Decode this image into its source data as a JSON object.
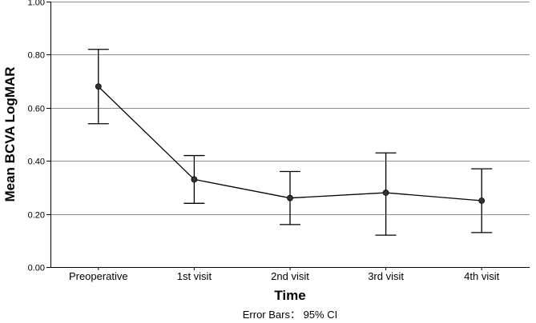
{
  "chart_data": {
    "type": "line",
    "title": "",
    "xlabel": "Time",
    "ylabel": "Mean BCVA LogMAR",
    "ylim": [
      0,
      1
    ],
    "yticks": [
      "0.00",
      "0.20",
      "0.40",
      "0.60",
      "0.80",
      "1.00"
    ],
    "grid": true,
    "categories": [
      "Preoperative",
      "1st visit",
      "2nd visit",
      "3rd visit",
      "4th visit"
    ],
    "series": [
      {
        "values": [
          0.68,
          0.33,
          0.26,
          0.28,
          0.25
        ],
        "ci_low": [
          0.54,
          0.24,
          0.16,
          0.12,
          0.13
        ],
        "ci_high": [
          0.82,
          0.42,
          0.36,
          0.43,
          0.37
        ]
      }
    ],
    "footnote": "Error Bars：  95% CI",
    "colors": {
      "line": "#000000",
      "grid": "#8c8c8c",
      "marker": "#333333"
    }
  }
}
